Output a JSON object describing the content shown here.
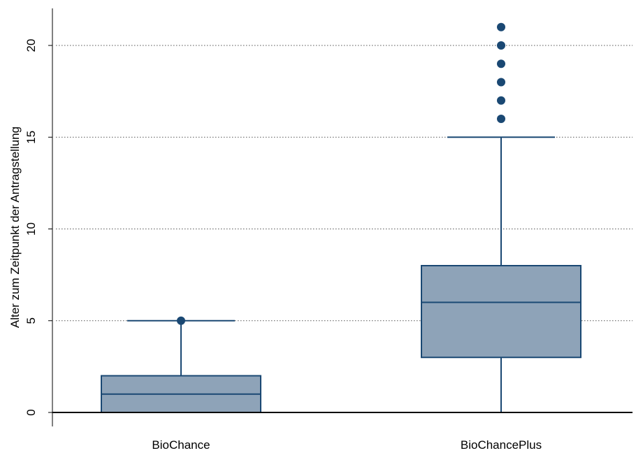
{
  "chart_data": {
    "type": "boxplot",
    "title": "",
    "xlabel": "",
    "ylabel": "Alter zum Zeitpunkt der Antragstellung",
    "ylim": [
      -1,
      22
    ],
    "yticks": [
      0,
      5,
      10,
      15,
      20
    ],
    "grid": true,
    "categories": [
      "BioChance",
      "BioChancePlus"
    ],
    "boxes": [
      {
        "category": "BioChance",
        "whisker_low": 0,
        "q1": 0,
        "median": 1,
        "q3": 2,
        "whisker_high": 5,
        "outliers": [
          5
        ]
      },
      {
        "category": "BioChancePlus",
        "whisker_low": 0,
        "q1": 3,
        "median": 6,
        "q3": 8,
        "whisker_high": 15,
        "outliers": [
          16,
          17,
          18,
          19,
          20,
          21
        ]
      }
    ],
    "colors": {
      "box_fill": "#8ea3b8",
      "box_stroke": "#1a4873",
      "outlier": "#1a4873",
      "grid": "#555555"
    }
  }
}
